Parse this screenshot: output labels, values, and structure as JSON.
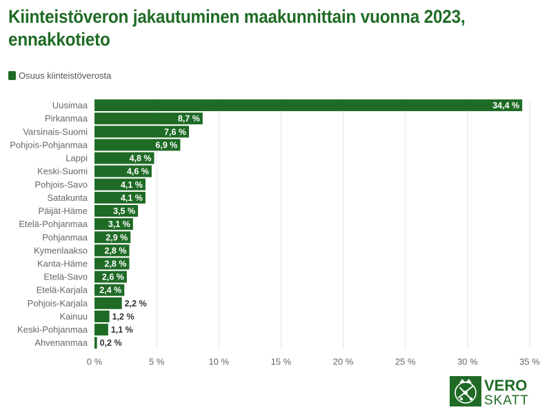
{
  "title": "Kiinteistöveron jakautuminen maakunnittain vuonna 2023, ennakkotieto",
  "legend": {
    "label": "Osuus kiinteistöverosta"
  },
  "colors": {
    "bar": "#1f6b26",
    "title": "#1f6b26",
    "grid": "#e3e3e3",
    "axis_text": "#666666"
  },
  "logo": {
    "line1": "VERO",
    "line2": "SKATT"
  },
  "chart_data": {
    "type": "bar",
    "orientation": "horizontal",
    "categories": [
      "Uusimaa",
      "Pirkanmaa",
      "Varsinais-Suomi",
      "Pohjois-Pohjanmaa",
      "Lappi",
      "Keski-Suomi",
      "Pohjois-Savo",
      "Satakunta",
      "Päijät-Häme",
      "Etelä-Pohjanmaa",
      "Pohjanmaa",
      "Kymenlaakso",
      "Kanta-Häme",
      "Etelä-Savo",
      "Etelä-Karjala",
      "Pohjois-Karjala",
      "Kainuu",
      "Keski-Pohjanmaa",
      "Ahvenanmaa"
    ],
    "values": [
      34.4,
      8.7,
      7.6,
      6.9,
      4.8,
      4.6,
      4.1,
      4.1,
      3.5,
      3.1,
      2.9,
      2.8,
      2.8,
      2.6,
      2.4,
      2.2,
      1.2,
      1.1,
      0.2
    ],
    "value_labels": [
      "34,4 %",
      "8,7 %",
      "7,6 %",
      "6,9 %",
      "4,8 %",
      "4,6 %",
      "4,1 %",
      "4,1 %",
      "3,5 %",
      "3,1 %",
      "2,9 %",
      "2,8 %",
      "2,8 %",
      "2,6 %",
      "2,4 %",
      "2,2 %",
      "1,2 %",
      "1,1 %",
      "0,2 %"
    ],
    "series": [
      {
        "name": "Osuus kiinteistöverosta"
      }
    ],
    "xlim": [
      0,
      35
    ],
    "x_ticks": [
      0,
      5,
      10,
      15,
      20,
      25,
      30,
      35
    ],
    "x_tick_labels": [
      "0 %",
      "5 %",
      "10 %",
      "15 %",
      "20 %",
      "25 %",
      "30 %",
      "35 %"
    ],
    "grid": true,
    "legend_position": "top-left"
  }
}
